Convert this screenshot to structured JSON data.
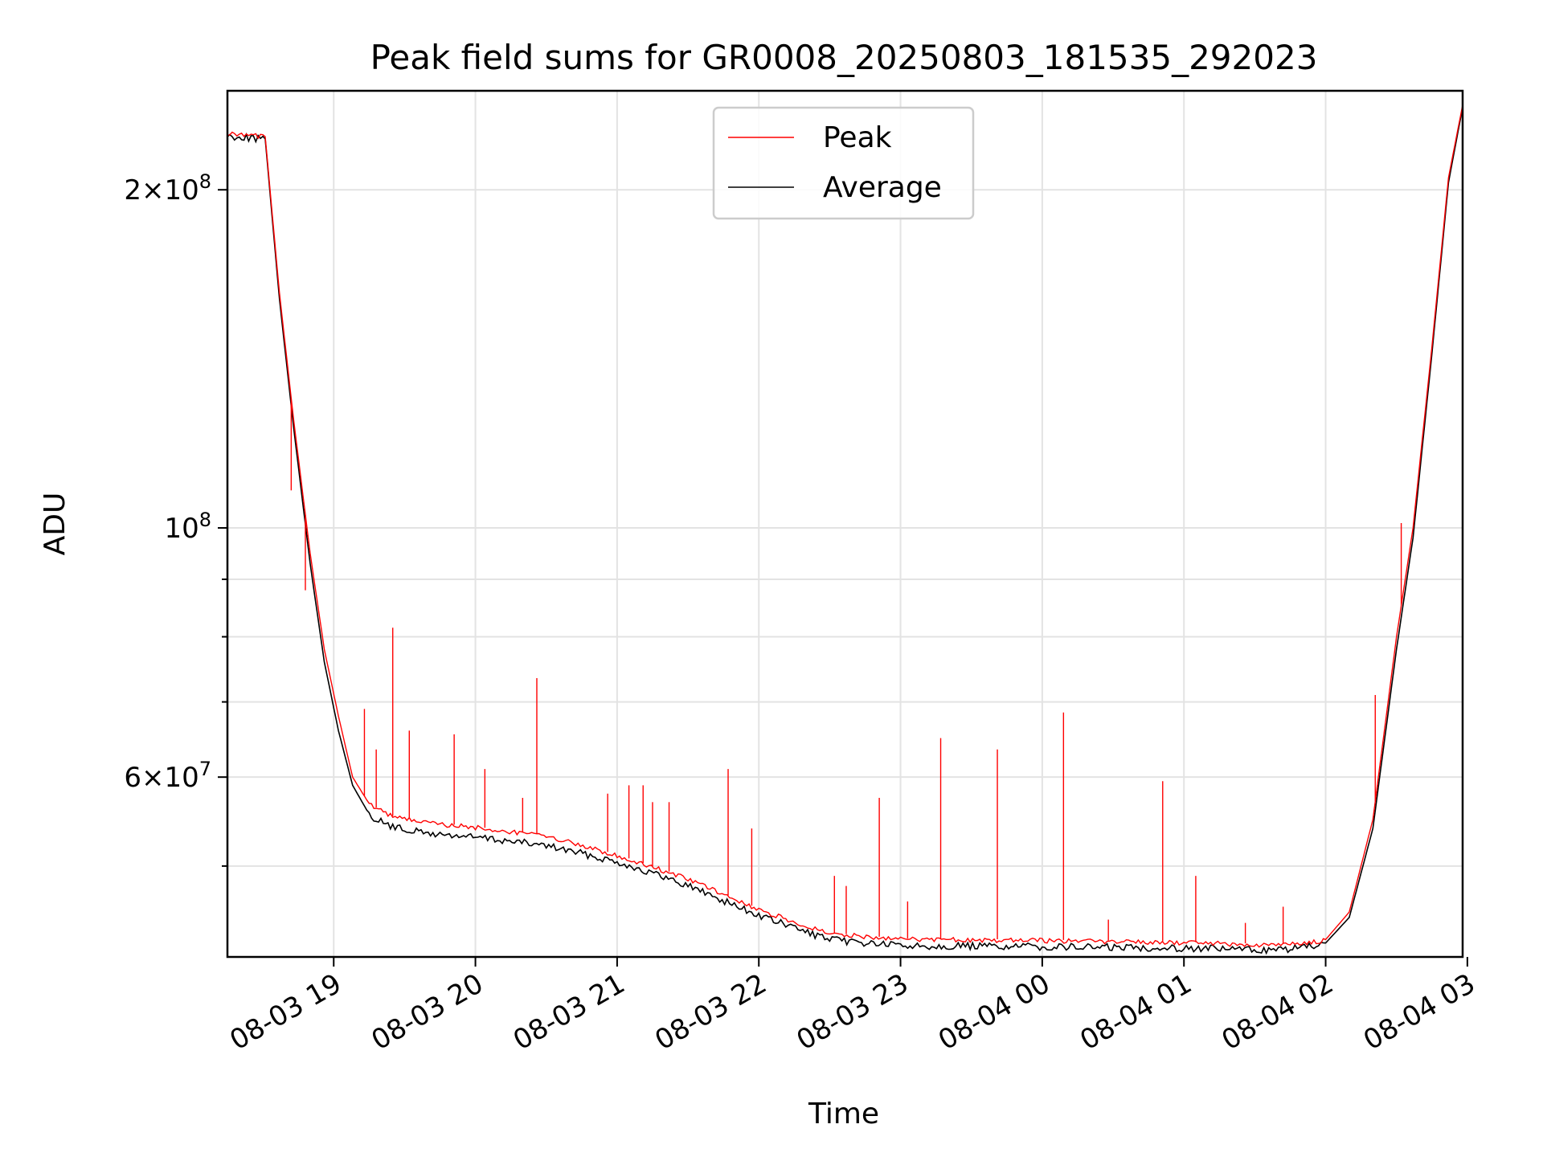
{
  "chart_data": {
    "type": "line",
    "title": "Peak field sums for GR0008_20250803_181535_292023",
    "xlabel": "Time",
    "ylabel": "ADU",
    "yscale": "log",
    "ylim": [
      41500000,
      245000000
    ],
    "xlim": [
      "08-03 18:15",
      "08-04 02:58"
    ],
    "grid": true,
    "legend_position": "top-center",
    "x_ticks": [
      {
        "time": "08-03 19:00",
        "label": "08-03 19"
      },
      {
        "time": "08-03 20:00",
        "label": "08-03 20"
      },
      {
        "time": "08-03 21:00",
        "label": "08-03 21"
      },
      {
        "time": "08-03 22:00",
        "label": "08-03 22"
      },
      {
        "time": "08-03 23:00",
        "label": "08-03 23"
      },
      {
        "time": "08-04 00:00",
        "label": "08-04 00"
      },
      {
        "time": "08-04 01:00",
        "label": "08-04 01"
      },
      {
        "time": "08-04 02:00",
        "label": "08-04 02"
      },
      {
        "time": "08-04 03:00",
        "label": "08-04 03"
      }
    ],
    "y_major_ticks": [
      {
        "value": 200000000,
        "mant": "2",
        "exp": "8"
      },
      {
        "value": 100000000,
        "mant": "",
        "exp": "8"
      },
      {
        "value": 60000000,
        "mant": "6",
        "exp": "7"
      }
    ],
    "y_minor_ticks": [
      50000000,
      70000000,
      80000000,
      90000000
    ],
    "series": [
      {
        "name": "Peak",
        "color": "#ff0000",
        "points": [
          [
            "08-03 18:15",
            225000000
          ],
          [
            "08-03 18:27",
            224000000
          ],
          [
            "08-03 18:31",
            223000000
          ],
          [
            "08-03 18:37",
            162000000
          ],
          [
            "08-03 18:43",
            125000000
          ],
          [
            "08-03 18:50",
            95000000
          ],
          [
            "08-03 18:56",
            78000000
          ],
          [
            "08-03 19:02",
            68000000
          ],
          [
            "08-03 19:08",
            60000000
          ],
          [
            "08-03 19:15",
            56800000
          ],
          [
            "08-03 19:25",
            55400000
          ],
          [
            "08-03 19:40",
            54700000
          ],
          [
            "08-03 20:00",
            54200000
          ],
          [
            "08-03 20:30",
            53300000
          ],
          [
            "08-03 21:00",
            51200000
          ],
          [
            "08-03 21:30",
            48800000
          ],
          [
            "08-03 22:00",
            45800000
          ],
          [
            "08-03 22:30",
            43600000
          ],
          [
            "08-03 23:00",
            43100000
          ],
          [
            "08-04 00:00",
            43000000
          ],
          [
            "08-04 01:00",
            42800000
          ],
          [
            "08-04 01:40",
            42600000
          ],
          [
            "08-04 02:00",
            43000000
          ],
          [
            "08-04 02:10",
            45500000
          ],
          [
            "08-04 02:20",
            55000000
          ],
          [
            "08-04 02:30",
            80000000
          ],
          [
            "08-04 02:37",
            100000000
          ],
          [
            "08-04 02:45",
            145000000
          ],
          [
            "08-04 02:52",
            205000000
          ],
          [
            "08-04 02:58",
            238000000
          ]
        ],
        "spikes": [
          [
            "08-03 18:42",
            108000000
          ],
          [
            "08-03 18:48",
            88000000
          ],
          [
            "08-03 19:13",
            69000000
          ],
          [
            "08-03 19:18",
            63500000
          ],
          [
            "08-03 19:25",
            81500000
          ],
          [
            "08-03 19:32",
            66000000
          ],
          [
            "08-03 19:51",
            65500000
          ],
          [
            "08-03 20:04",
            61000000
          ],
          [
            "08-03 20:20",
            57500000
          ],
          [
            "08-03 20:26",
            73500000
          ],
          [
            "08-03 20:56",
            58000000
          ],
          [
            "08-03 21:05",
            59000000
          ],
          [
            "08-03 21:11",
            59000000
          ],
          [
            "08-03 21:15",
            57000000
          ],
          [
            "08-03 21:22",
            57000000
          ],
          [
            "08-03 21:47",
            61000000
          ],
          [
            "08-03 21:57",
            54000000
          ],
          [
            "08-03 22:32",
            49000000
          ],
          [
            "08-03 22:37",
            48000000
          ],
          [
            "08-03 22:51",
            57500000
          ],
          [
            "08-03 23:03",
            46500000
          ],
          [
            "08-03 23:17",
            65000000
          ],
          [
            "08-03 23:41",
            63500000
          ],
          [
            "08-04 00:09",
            68500000
          ],
          [
            "08-04 00:28",
            44800000
          ],
          [
            "08-04 00:51",
            59500000
          ],
          [
            "08-04 01:05",
            49000000
          ],
          [
            "08-04 01:26",
            44500000
          ],
          [
            "08-04 01:42",
            46000000
          ],
          [
            "08-04 02:21",
            71000000
          ],
          [
            "08-04 02:32",
            101000000
          ]
        ]
      },
      {
        "name": "Average",
        "color": "#000000",
        "points": [
          [
            "08-03 18:15",
            224000000
          ],
          [
            "08-03 18:27",
            223000000
          ],
          [
            "08-03 18:31",
            222000000
          ],
          [
            "08-03 18:37",
            160000000
          ],
          [
            "08-03 18:43",
            123000000
          ],
          [
            "08-03 18:50",
            93000000
          ],
          [
            "08-03 18:56",
            76000000
          ],
          [
            "08-03 19:02",
            66000000
          ],
          [
            "08-03 19:08",
            59000000
          ],
          [
            "08-03 19:15",
            55600000
          ],
          [
            "08-03 19:25",
            54300000
          ],
          [
            "08-03 19:40",
            53600000
          ],
          [
            "08-03 20:00",
            53200000
          ],
          [
            "08-03 20:30",
            52300000
          ],
          [
            "08-03 21:00",
            50600000
          ],
          [
            "08-03 21:30",
            48200000
          ],
          [
            "08-03 22:00",
            45300000
          ],
          [
            "08-03 22:30",
            43100000
          ],
          [
            "08-03 23:00",
            42600000
          ],
          [
            "08-04 00:00",
            42500000
          ],
          [
            "08-04 01:00",
            42400000
          ],
          [
            "08-04 01:40",
            42200000
          ],
          [
            "08-04 02:00",
            42700000
          ],
          [
            "08-04 02:10",
            45000000
          ],
          [
            "08-04 02:20",
            54000000
          ],
          [
            "08-04 02:30",
            78000000
          ],
          [
            "08-04 02:37",
            98000000
          ],
          [
            "08-04 02:45",
            143000000
          ],
          [
            "08-04 02:52",
            203000000
          ],
          [
            "08-04 02:58",
            237000000
          ]
        ]
      }
    ]
  }
}
